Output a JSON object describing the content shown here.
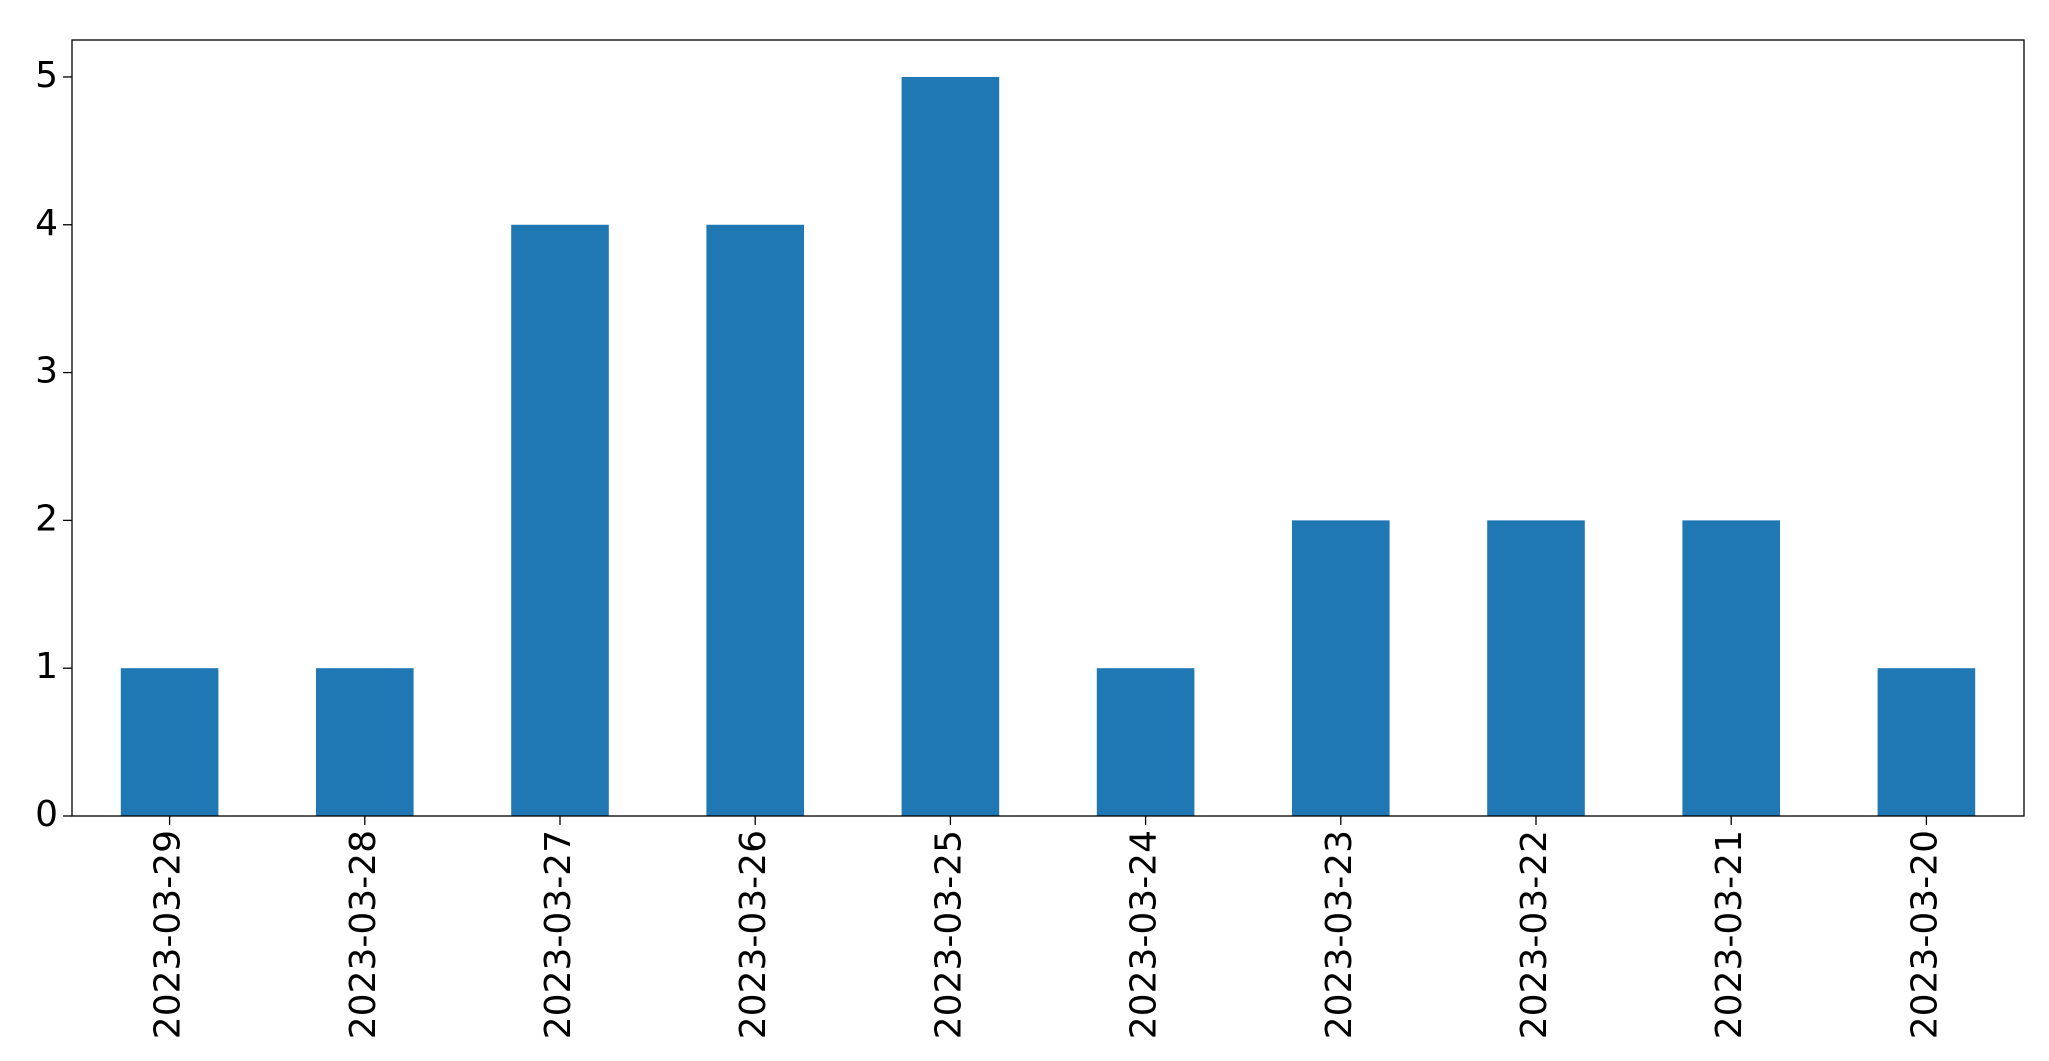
{
  "chart_data": {
    "type": "bar",
    "categories": [
      "2023-03-29",
      "2023-03-28",
      "2023-03-27",
      "2023-03-26",
      "2023-03-25",
      "2023-03-24",
      "2023-03-23",
      "2023-03-22",
      "2023-03-21",
      "2023-03-20"
    ],
    "values": [
      1,
      1,
      4,
      4,
      5,
      1,
      2,
      2,
      2,
      1
    ],
    "color": "#1f77b4",
    "ylim": [
      0,
      5.25
    ],
    "yticks": [
      0,
      1,
      2,
      3,
      4,
      5
    ],
    "grid": false
  }
}
